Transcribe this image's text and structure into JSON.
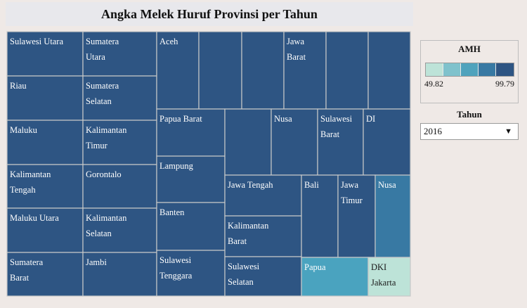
{
  "title": "Angka Melek Huruf Provinsi per Tahun",
  "legend": {
    "title": "AMH",
    "min_label": "49.82",
    "max_label": "99.79",
    "colors": [
      "#bde3d8",
      "#7fc2cc",
      "#4fa3bd",
      "#3879a3",
      "#2e5583"
    ]
  },
  "filter": {
    "label": "Tahun",
    "selected": "2016",
    "caret": "▼"
  },
  "colors": {
    "default_cell": "#2e5583",
    "nusa_cell": "#3879a3",
    "papua_cell": "#4aa3bf",
    "dki_cell": "#bde3d8"
  },
  "chart_data": {
    "type": "treemap",
    "cells": [
      {
        "lines": [
          "Sulawesi Utara"
        ]
      },
      {
        "lines": [
          "Sumatera",
          "Utara"
        ]
      },
      {
        "lines": [
          "Riau"
        ]
      },
      {
        "lines": [
          "Sumatera",
          "Selatan"
        ]
      },
      {
        "lines": [
          "Maluku"
        ]
      },
      {
        "lines": [
          "Kalimantan",
          "Timur"
        ]
      },
      {
        "lines": [
          "Kalimantan",
          "Tengah"
        ]
      },
      {
        "lines": [
          "Gorontalo"
        ]
      },
      {
        "lines": [
          "Maluku Utara"
        ]
      },
      {
        "lines": [
          "Kalimantan",
          "Selatan"
        ]
      },
      {
        "lines": [
          "Sumatera",
          "Barat"
        ]
      },
      {
        "lines": [
          "Jambi"
        ]
      },
      {
        "lines": [
          "Aceh"
        ]
      },
      {
        "lines": []
      },
      {
        "lines": []
      },
      {
        "lines": [
          "Jawa",
          "Barat"
        ]
      },
      {
        "lines": []
      },
      {
        "lines": []
      },
      {
        "lines": [
          "Papua Barat"
        ]
      },
      {
        "lines": [
          "Lampung"
        ]
      },
      {
        "lines": [
          "Banten"
        ]
      },
      {
        "lines": [
          "Sulawesi",
          "Tenggara"
        ]
      },
      {
        "lines": []
      },
      {
        "lines": [
          "Nusa"
        ]
      },
      {
        "lines": [
          "Sulawesi",
          "Barat"
        ]
      },
      {
        "lines": [
          "DI"
        ]
      },
      {
        "lines": [
          "Jawa Tengah"
        ]
      },
      {
        "lines": [
          "Kalimantan",
          "Barat"
        ]
      },
      {
        "lines": [
          "Sulawesi",
          "Selatan"
        ]
      },
      {
        "lines": [
          "Bali"
        ]
      },
      {
        "lines": [
          "Jawa",
          "Timur"
        ]
      },
      {
        "lines": [
          "Nusa"
        ]
      },
      {
        "lines": [
          "Papua"
        ]
      },
      {
        "lines": [
          "DKI",
          "Jakarta"
        ]
      }
    ]
  }
}
